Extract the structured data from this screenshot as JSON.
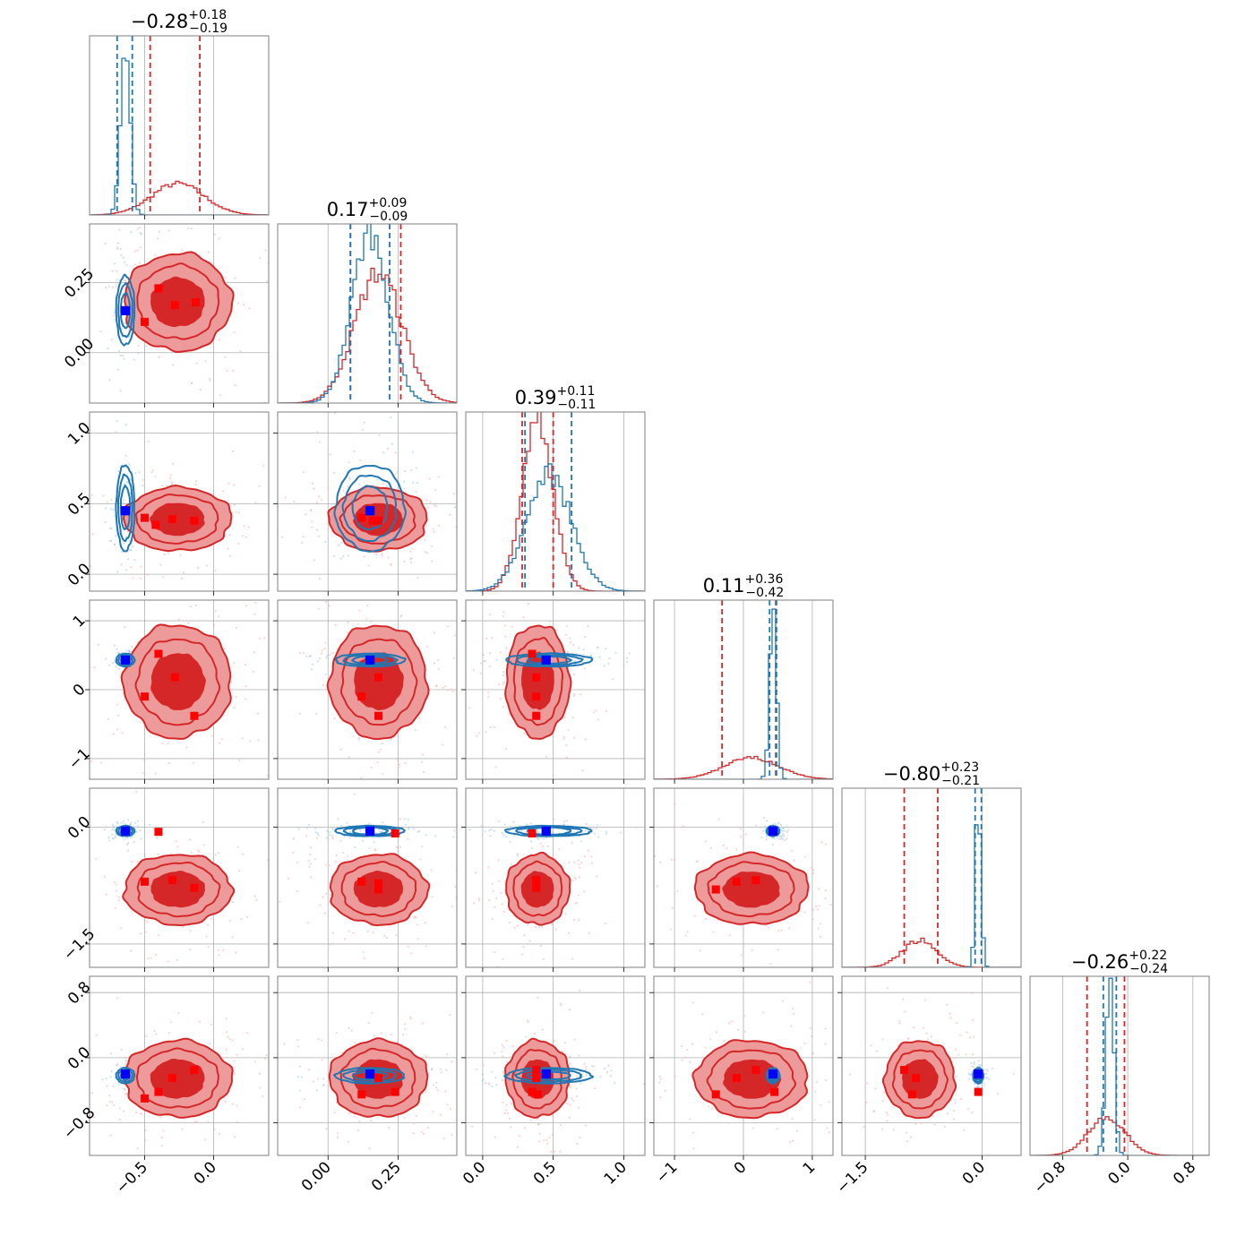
{
  "chart_data": {
    "type": "corner",
    "n_params": 6,
    "colors": {
      "red": "#d62728",
      "blue": "#1f77b4",
      "red_fill_1": "#ec9a9a",
      "red_fill_2": "#d62728",
      "marker_red": "#ff0000",
      "marker_blue": "#0000ff"
    },
    "grid": true,
    "params": [
      {
        "range": [
          -0.9,
          0.4
        ],
        "ticks": [
          -0.5,
          0.0
        ],
        "tick_labels": [
          "−0.5",
          "0.0"
        ],
        "title": {
          "main": "−0.28",
          "plus": "+0.18",
          "minus": "−0.19"
        },
        "red": {
          "mean": -0.26,
          "sd": 0.19,
          "q": [
            -0.46,
            -0.1
          ]
        },
        "blue": {
          "mean": -0.64,
          "sd": 0.035,
          "q": [
            -0.7,
            -0.59
          ]
        },
        "truth": -0.64
      },
      {
        "range": [
          -0.18,
          0.46
        ],
        "ticks": [
          0.0,
          0.25
        ],
        "tick_labels": [
          "0.00",
          "0.25"
        ],
        "title": {
          "main": "0.17",
          "plus": "+0.09",
          "minus": "−0.09"
        },
        "red": {
          "mean": 0.18,
          "sd": 0.085,
          "q": [
            0.08,
            0.26
          ]
        },
        "blue": {
          "mean": 0.15,
          "sd": 0.065,
          "q": [
            0.08,
            0.22
          ]
        },
        "truth": 0.15
      },
      {
        "range": [
          -0.12,
          1.15
        ],
        "ticks": [
          0.0,
          0.5,
          1.0
        ],
        "tick_labels": [
          "0.0",
          "0.5",
          "1.0"
        ],
        "title": {
          "main": "0.39",
          "plus": "+0.11",
          "minus": "−0.11"
        },
        "red": {
          "mean": 0.39,
          "sd": 0.11,
          "q": [
            0.28,
            0.5
          ]
        },
        "blue": {
          "mean": 0.47,
          "sd": 0.16,
          "q": [
            0.3,
            0.63
          ]
        },
        "truth": 0.45
      },
      {
        "range": [
          -1.3,
          1.3
        ],
        "ticks": [
          -1,
          0,
          1
        ],
        "tick_labels": [
          "−1",
          "0",
          "1"
        ],
        "title": {
          "main": "0.11",
          "plus": "+0.36",
          "minus": "−0.42"
        },
        "red": {
          "mean": 0.12,
          "sd": 0.4,
          "q": [
            -0.31,
            0.47
          ]
        },
        "blue": {
          "mean": 0.43,
          "sd": 0.05,
          "q": [
            0.38,
            0.48
          ]
        },
        "truth": 0.43
      },
      {
        "range": [
          -1.8,
          0.5
        ],
        "ticks": [
          -1.5,
          0.0
        ],
        "tick_labels": [
          "−1.5",
          "0.0"
        ],
        "title": {
          "main": "−0.80",
          "plus": "+0.23",
          "minus": "−0.21"
        },
        "red": {
          "mean": -0.8,
          "sd": 0.22,
          "q": [
            -1.0,
            -0.57
          ]
        },
        "blue": {
          "mean": -0.05,
          "sd": 0.035,
          "q": [
            -0.09,
            -0.01
          ]
        },
        "truth": -0.05
      },
      {
        "range": [
          -1.2,
          1.0
        ],
        "ticks": [
          -0.8,
          0.0,
          0.8
        ],
        "tick_labels": [
          "−0.8",
          "0.0",
          "0.8"
        ],
        "title": {
          "main": "−0.26",
          "plus": "+0.22",
          "minus": "−0.24"
        },
        "red": {
          "mean": -0.26,
          "sd": 0.23,
          "q": [
            -0.5,
            -0.04
          ]
        },
        "blue": {
          "mean": -0.22,
          "sd": 0.05,
          "q": [
            -0.3,
            -0.14
          ]
        },
        "truth": -0.2
      }
    ],
    "red_markers": [
      {
        "row": 1,
        "col": 0,
        "pts": [
          [
            -0.4,
            0.23
          ],
          [
            -0.28,
            0.17
          ],
          [
            -0.13,
            0.18
          ],
          [
            -0.5,
            0.11
          ]
        ]
      },
      {
        "row": 2,
        "col": 0,
        "pts": [
          [
            -0.5,
            0.4
          ],
          [
            -0.42,
            0.35
          ],
          [
            -0.3,
            0.39
          ],
          [
            -0.14,
            0.38
          ]
        ]
      },
      {
        "row": 2,
        "col": 1,
        "pts": [
          [
            0.12,
            0.4
          ],
          [
            0.18,
            0.38
          ],
          [
            0.16,
            0.38
          ]
        ]
      },
      {
        "row": 3,
        "col": 0,
        "pts": [
          [
            -0.4,
            0.52
          ],
          [
            -0.28,
            0.18
          ],
          [
            -0.5,
            -0.1
          ],
          [
            -0.14,
            -0.38
          ]
        ]
      },
      {
        "row": 3,
        "col": 1,
        "pts": [
          [
            0.12,
            -0.1
          ],
          [
            0.18,
            0.18
          ],
          [
            0.18,
            -0.38
          ]
        ]
      },
      {
        "row": 3,
        "col": 2,
        "pts": [
          [
            0.35,
            0.52
          ],
          [
            0.38,
            0.18
          ],
          [
            0.38,
            -0.1
          ],
          [
            0.38,
            -0.38
          ]
        ]
      },
      {
        "row": 4,
        "col": 0,
        "pts": [
          [
            -0.4,
            -0.06
          ],
          [
            -0.5,
            -0.7
          ],
          [
            -0.3,
            -0.68
          ],
          [
            -0.14,
            -0.78
          ]
        ]
      },
      {
        "row": 4,
        "col": 1,
        "pts": [
          [
            0.24,
            -0.08
          ],
          [
            0.12,
            -0.7
          ],
          [
            0.18,
            -0.72
          ],
          [
            0.18,
            -0.8
          ]
        ]
      },
      {
        "row": 4,
        "col": 2,
        "pts": [
          [
            0.35,
            -0.08
          ],
          [
            0.38,
            -0.7
          ],
          [
            0.38,
            -0.78
          ],
          [
            0.38,
            -0.68
          ]
        ]
      },
      {
        "row": 4,
        "col": 3,
        "pts": [
          [
            -0.4,
            -0.8
          ],
          [
            -0.1,
            -0.7
          ],
          [
            0.18,
            -0.68
          ]
        ]
      },
      {
        "row": 5,
        "col": 0,
        "pts": [
          [
            -0.5,
            -0.5
          ],
          [
            -0.4,
            -0.42
          ],
          [
            -0.3,
            -0.25
          ],
          [
            -0.14,
            -0.15
          ]
        ]
      },
      {
        "row": 5,
        "col": 1,
        "pts": [
          [
            0.12,
            -0.45
          ],
          [
            0.18,
            -0.25
          ],
          [
            0.24,
            -0.42
          ]
        ]
      },
      {
        "row": 5,
        "col": 2,
        "pts": [
          [
            0.35,
            -0.42
          ],
          [
            0.38,
            -0.25
          ],
          [
            0.39,
            -0.45
          ],
          [
            0.38,
            -0.15
          ]
        ]
      },
      {
        "row": 5,
        "col": 3,
        "pts": [
          [
            -0.4,
            -0.45
          ],
          [
            -0.1,
            -0.25
          ],
          [
            0.18,
            -0.15
          ],
          [
            0.45,
            -0.42
          ]
        ]
      },
      {
        "row": 5,
        "col": 4,
        "pts": [
          [
            -1.0,
            -0.15
          ],
          [
            -0.85,
            -0.25
          ],
          [
            -0.9,
            -0.45
          ],
          [
            -0.05,
            -0.42
          ]
        ]
      }
    ]
  }
}
